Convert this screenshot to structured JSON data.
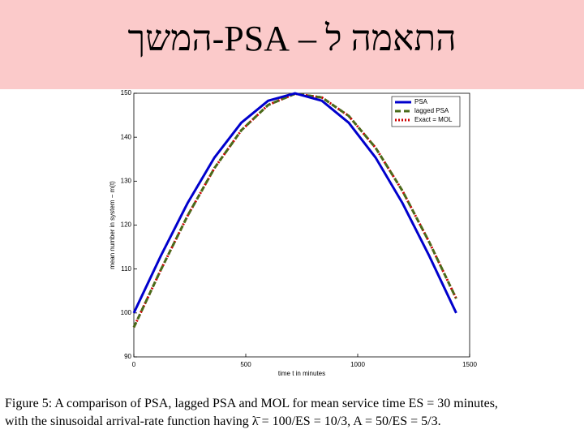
{
  "slide": {
    "title": "התאמה ל – PSA-המשך"
  },
  "chart_data": {
    "type": "line",
    "xlabel": "time t in minutes",
    "ylabel": "mean number in system − m(t)",
    "x": [
      0,
      120,
      240,
      360,
      480,
      600,
      720,
      840,
      960,
      1080,
      1200,
      1320,
      1440
    ],
    "series": [
      {
        "name": "PSA",
        "color": "#0000cc",
        "style": "solid",
        "values": [
          100,
          112.94,
          125,
          135.36,
          143.3,
          148.3,
          150,
          148.3,
          143.3,
          135.36,
          125,
          112.94,
          100
        ]
      },
      {
        "name": "lagged PSA",
        "color": "#4a6b1a",
        "style": "dashed",
        "values": [
          96.73,
          109.75,
          122.11,
          132.96,
          141.57,
          147.34,
          149.89,
          149.04,
          144.84,
          137.59,
          127.78,
          116.07,
          103.27
        ]
      },
      {
        "name": "Exact = MOL",
        "color": "#cc0000",
        "style": "dotted",
        "values": [
          96.73,
          109.75,
          122.11,
          132.96,
          141.57,
          147.34,
          149.89,
          149.04,
          144.84,
          137.59,
          127.78,
          116.07,
          103.27
        ]
      }
    ],
    "xlim": [
      0,
      1500
    ],
    "xticks": [
      0,
      500,
      1000,
      1500
    ],
    "ylim": [
      90,
      150
    ],
    "yticks": [
      90,
      100,
      110,
      120,
      130,
      140,
      150
    ],
    "legend": "upper right"
  },
  "caption": [
    "Figure 5:  A comparison of PSA, lagged PSA and MOL for mean service time ES = 30 minutes,",
    "with the sinusoidal arrival-rate function having λ̄ = 100/ES = 10/3,  A = 50/ES = 5/3."
  ]
}
